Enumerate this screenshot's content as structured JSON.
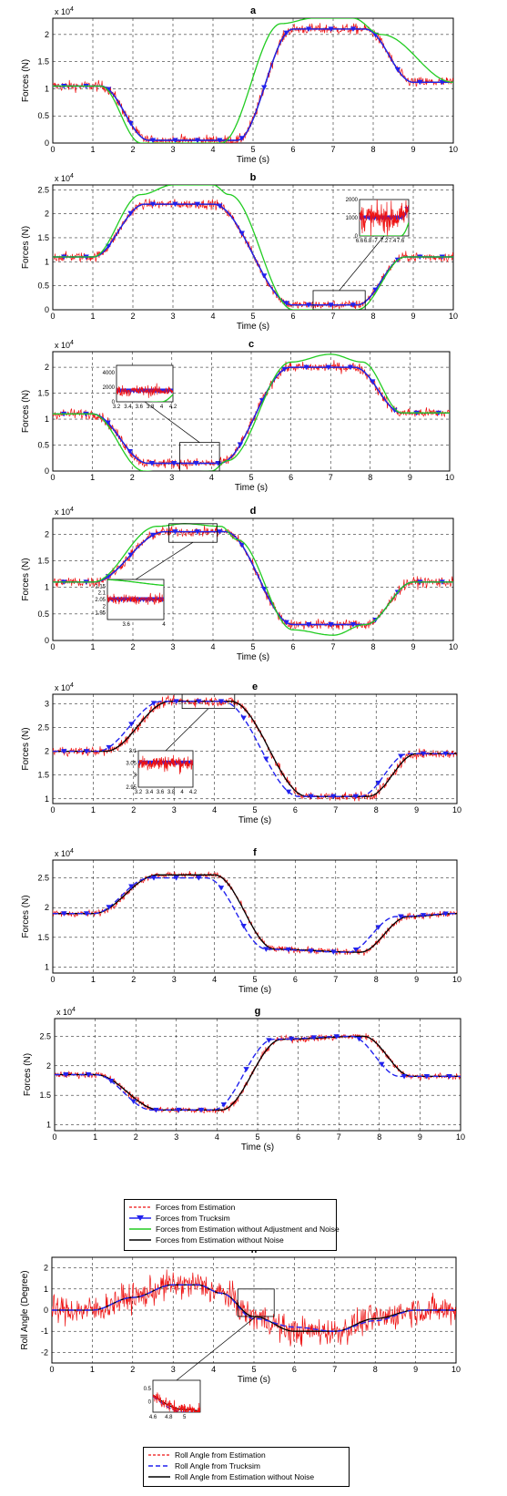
{
  "chart_data": [
    {
      "panel": "a",
      "type": "line",
      "title": "a",
      "xlabel": "Time (s)",
      "ylabel": "Forces (N)",
      "yexponent": "x 10^4",
      "xlim": [
        0,
        10
      ],
      "ylim": [
        0,
        2.3
      ],
      "grid": true,
      "xticks": [
        "0",
        "1",
        "2",
        "3",
        "4",
        "5",
        "6",
        "7",
        "8",
        "9",
        "10"
      ],
      "yticks": [
        "0",
        "0.5",
        "1",
        "1.5",
        "2"
      ],
      "series": [
        {
          "name": "Forces from Estimation without Noise",
          "x": [
            0,
            1.2,
            2.4,
            4.6,
            6.0,
            7.8,
            9.0,
            10
          ],
          "y": [
            1.05,
            1.05,
            0.05,
            0.05,
            2.1,
            2.1,
            1.12,
            1.12
          ]
        },
        {
          "name": "Forces from Trucksim",
          "x": [
            0,
            1.2,
            2.4,
            4.6,
            6.0,
            7.8,
            9.0,
            10
          ],
          "y": [
            1.05,
            1.05,
            0.05,
            0.05,
            2.1,
            2.1,
            1.12,
            1.12
          ]
        },
        {
          "name": "Forces from Estimation without Adjustment and Noise",
          "x": [
            0,
            1.2,
            2.2,
            4.2,
            5.7,
            6.5,
            7.5,
            8.2,
            10
          ],
          "y": [
            1.05,
            1.05,
            0.0,
            0.0,
            2.2,
            2.3,
            2.3,
            2.0,
            1.12
          ]
        },
        {
          "name": "Forces from Estimation",
          "noise": 0.16,
          "x": [
            0,
            1.2,
            2.4,
            4.6,
            6.0,
            7.8,
            9.0,
            10
          ],
          "y": [
            1.05,
            1.05,
            0.05,
            0.05,
            2.1,
            2.1,
            1.12,
            1.12
          ]
        }
      ]
    },
    {
      "panel": "b",
      "type": "line",
      "title": "b",
      "xlabel": "Time (s)",
      "ylabel": "Forces (N)",
      "yexponent": "x 10^4",
      "xlim": [
        0,
        10
      ],
      "ylim": [
        0,
        2.6
      ],
      "grid": true,
      "xticks": [
        "0",
        "1",
        "2",
        "3",
        "4",
        "5",
        "6",
        "7",
        "8",
        "9",
        "10"
      ],
      "yticks": [
        "0",
        "0.5",
        "1",
        "1.5",
        "2",
        "2.5"
      ],
      "series": [
        {
          "name": "Forces from Estimation without Noise",
          "x": [
            0,
            1.0,
            2.3,
            4.0,
            6.0,
            7.6,
            8.8,
            10
          ],
          "y": [
            1.1,
            1.1,
            2.2,
            2.2,
            0.1,
            0.1,
            1.1,
            1.1
          ]
        },
        {
          "name": "Forces from Trucksim",
          "x": [
            0,
            1.0,
            2.3,
            4.0,
            6.0,
            7.6,
            8.8,
            10
          ],
          "y": [
            1.1,
            1.1,
            2.2,
            2.2,
            0.1,
            0.1,
            1.1,
            1.1
          ]
        },
        {
          "name": "Forces from Estimation without Adjustment and Noise",
          "x": [
            0,
            1.0,
            2.2,
            3.0,
            4.0,
            4.4,
            6.0,
            7.6,
            8.8,
            10
          ],
          "y": [
            1.1,
            1.1,
            2.4,
            2.6,
            2.6,
            2.4,
            0.0,
            0.0,
            1.1,
            1.1
          ]
        },
        {
          "name": "Forces from Estimation",
          "noise": 0.16,
          "x": [
            0,
            1.0,
            2.3,
            4.0,
            6.0,
            7.6,
            8.8,
            10
          ],
          "y": [
            1.1,
            1.1,
            2.2,
            2.2,
            0.1,
            0.1,
            1.1,
            1.1
          ]
        }
      ],
      "inset": {
        "xlim": [
          6.6,
          7.8
        ],
        "ylim": [
          0,
          2000
        ],
        "xticks": [
          "6.6",
          "6.8",
          "7",
          "7.2",
          "7.4",
          "7.6"
        ],
        "yticks": [
          "0",
          "1000",
          "2000"
        ],
        "zoom_box": {
          "x": [
            6.5,
            7.8
          ],
          "y": [
            0,
            0.4
          ]
        }
      }
    },
    {
      "panel": "c",
      "type": "line",
      "title": "c",
      "xlabel": "Time (s)",
      "ylabel": "Forces (N)",
      "yexponent": "x 10^4",
      "xlim": [
        0,
        10
      ],
      "ylim": [
        0,
        2.3
      ],
      "grid": true,
      "xticks": [
        "0",
        "1",
        "2",
        "3",
        "4",
        "5",
        "6",
        "7",
        "8",
        "9",
        "10"
      ],
      "yticks": [
        "0",
        "0.5",
        "1",
        "1.5",
        "2"
      ],
      "series": [
        {
          "name": "Forces from Estimation without Noise",
          "x": [
            0,
            1.0,
            2.4,
            4.2,
            6.0,
            7.6,
            8.8,
            10
          ],
          "y": [
            1.1,
            1.1,
            0.15,
            0.15,
            2.0,
            2.0,
            1.12,
            1.12
          ]
        },
        {
          "name": "Forces from Trucksim",
          "x": [
            0,
            1.0,
            2.4,
            4.2,
            6.0,
            7.6,
            8.8,
            10
          ],
          "y": [
            1.1,
            1.1,
            0.15,
            0.15,
            2.0,
            2.0,
            1.12,
            1.12
          ]
        },
        {
          "name": "Forces from Estimation without Adjustment and Noise",
          "x": [
            0,
            1.0,
            2.3,
            3.0,
            4.0,
            4.4,
            6.0,
            7.0,
            7.8,
            8.8,
            10
          ],
          "y": [
            1.1,
            1.1,
            0.0,
            -0.05,
            0.0,
            0.2,
            2.1,
            2.25,
            2.1,
            1.12,
            1.12
          ]
        },
        {
          "name": "Forces from Estimation",
          "noise": 0.16,
          "x": [
            0,
            1.0,
            2.4,
            4.2,
            6.0,
            7.6,
            8.8,
            10
          ],
          "y": [
            1.1,
            1.1,
            0.15,
            0.15,
            2.0,
            2.0,
            1.12,
            1.12
          ]
        }
      ],
      "inset": {
        "xlim": [
          3.2,
          4.2
        ],
        "ylim": [
          0,
          5000
        ],
        "xticks": [
          "3.2",
          "3.4",
          "3.6",
          "3.8",
          "4",
          "4.2"
        ],
        "yticks": [
          "0",
          "2000",
          "4000"
        ],
        "zoom_box": {
          "x": [
            3.2,
            4.2
          ],
          "y": [
            0,
            0.55
          ]
        }
      }
    },
    {
      "panel": "d",
      "type": "line",
      "title": "d",
      "xlabel": "Time (s)",
      "ylabel": "Forces (N)",
      "yexponent": "x 10^4",
      "xlim": [
        0,
        10
      ],
      "ylim": [
        0,
        2.3
      ],
      "grid": true,
      "xticks": [
        "0",
        "1",
        "2",
        "3",
        "4",
        "5",
        "6",
        "7",
        "8",
        "9",
        "10"
      ],
      "yticks": [
        "0",
        "0.5",
        "1",
        "1.5",
        "2"
      ],
      "series": [
        {
          "name": "Forces from Estimation without Noise",
          "x": [
            0,
            1.0,
            2.8,
            4.3,
            6.0,
            7.8,
            9.0,
            10
          ],
          "y": [
            1.1,
            1.1,
            2.05,
            2.05,
            0.3,
            0.3,
            1.1,
            1.1
          ]
        },
        {
          "name": "Forces from Trucksim",
          "x": [
            0,
            1.0,
            2.8,
            4.3,
            6.0,
            7.8,
            9.0,
            10
          ],
          "y": [
            1.1,
            1.1,
            2.05,
            2.05,
            0.3,
            0.3,
            1.1,
            1.1
          ]
        },
        {
          "name": "Forces from Estimation without Adjustment and Noise",
          "x": [
            0,
            1.0,
            2.6,
            3.3,
            4.2,
            4.6,
            6.0,
            7.0,
            7.8,
            9.0,
            10
          ],
          "y": [
            1.1,
            1.1,
            2.15,
            2.2,
            2.15,
            1.9,
            0.2,
            0.1,
            0.3,
            1.1,
            1.1
          ]
        },
        {
          "name": "Forces from Estimation",
          "noise": 0.16,
          "x": [
            0,
            1.0,
            2.8,
            4.3,
            6.0,
            7.8,
            9.0,
            10
          ],
          "y": [
            1.1,
            1.1,
            2.05,
            2.05,
            0.3,
            0.3,
            1.1,
            1.1
          ]
        }
      ],
      "inset": {
        "xlim": [
          3.4,
          4.0
        ],
        "ylim": [
          1.9,
          2.2
        ],
        "xticks": [
          "3.6",
          "4"
        ],
        "yticks": [
          "1.95",
          "2",
          "2.05",
          "2.1",
          "2.15"
        ],
        "zoom_box": {
          "x": [
            2.9,
            4.1
          ],
          "y": [
            1.85,
            2.2
          ]
        }
      }
    },
    {
      "panel": "e",
      "type": "line",
      "title": "e",
      "xlabel": "Time (s)",
      "ylabel": "Forces (N)",
      "yexponent": "x 10^4",
      "xlim": [
        0,
        10
      ],
      "ylim": [
        0.9,
        3.2
      ],
      "grid": true,
      "xticks": [
        "0",
        "1",
        "2",
        "3",
        "4",
        "5",
        "6",
        "7",
        "8",
        "9",
        "10"
      ],
      "yticks": [
        "1",
        "1.5",
        "2",
        "2.5",
        "3"
      ],
      "series": [
        {
          "name": "Forces from Estimation without Noise",
          "x": [
            0,
            1.3,
            2.9,
            4.4,
            6.3,
            7.8,
            9.0,
            10
          ],
          "y": [
            2.0,
            2.0,
            3.05,
            3.05,
            1.05,
            1.05,
            1.95,
            1.95
          ]
        },
        {
          "name": "Forces from Trucksim",
          "x": [
            0,
            1.1,
            2.7,
            4.2,
            6.1,
            7.6,
            8.8,
            10
          ],
          "y": [
            2.0,
            2.0,
            3.05,
            3.05,
            1.05,
            1.05,
            1.95,
            1.95
          ]
        },
        {
          "name": "Forces from Estimation",
          "noise": 0.16,
          "x": [
            0,
            1.3,
            2.9,
            4.4,
            6.3,
            7.8,
            9.0,
            10
          ],
          "y": [
            2.0,
            2.0,
            3.05,
            3.05,
            1.05,
            1.05,
            1.95,
            1.95
          ]
        }
      ],
      "inset": {
        "xlim": [
          3.2,
          4.2
        ],
        "ylim": [
          2.95,
          3.1
        ],
        "xticks": [
          "3.2",
          "3.4",
          "3.6",
          "3.8",
          "4",
          "4.2"
        ],
        "yticks": [
          "2.95",
          "3",
          "3.05",
          "3.1"
        ],
        "zoom_box": {
          "x": [
            3.2,
            4.5
          ],
          "y": [
            2.9,
            3.2
          ]
        }
      }
    },
    {
      "panel": "f",
      "type": "line",
      "title": "f",
      "xlabel": "Time (s)",
      "ylabel": "Forces (N)",
      "yexponent": "x 10^4",
      "xlim": [
        0,
        10
      ],
      "ylim": [
        0.9,
        2.8
      ],
      "grid": true,
      "xticks": [
        "0",
        "1",
        "2",
        "3",
        "4",
        "5",
        "6",
        "7",
        "8",
        "9",
        "10"
      ],
      "yticks": [
        "1",
        "1.5",
        "2",
        "2.5"
      ],
      "series": [
        {
          "name": "Forces from Estimation without Noise",
          "x": [
            0,
            1.0,
            2.6,
            4.0,
            5.5,
            7.6,
            8.8,
            10
          ],
          "y": [
            1.9,
            1.9,
            2.55,
            2.55,
            1.3,
            1.25,
            1.85,
            1.9
          ]
        },
        {
          "name": "Forces from Trucksim",
          "x": [
            0,
            1.0,
            2.4,
            3.8,
            5.3,
            7.3,
            8.5,
            10
          ],
          "y": [
            1.9,
            1.9,
            2.5,
            2.5,
            1.3,
            1.25,
            1.85,
            1.9
          ]
        },
        {
          "name": "Forces from Estimation",
          "noise": 0.09,
          "x": [
            0,
            1.0,
            2.6,
            4.0,
            5.5,
            7.6,
            8.8,
            10
          ],
          "y": [
            1.9,
            1.9,
            2.55,
            2.55,
            1.3,
            1.25,
            1.85,
            1.9
          ]
        }
      ]
    },
    {
      "panel": "g",
      "type": "line",
      "title": "g",
      "xlabel": "Time (s)",
      "ylabel": "Forces (N)",
      "yexponent": "x 10^4",
      "xlim": [
        0,
        10
      ],
      "ylim": [
        0.9,
        2.8
      ],
      "grid": true,
      "xticks": [
        "0",
        "1",
        "2",
        "3",
        "4",
        "5",
        "6",
        "7",
        "8",
        "9",
        "10"
      ],
      "yticks": [
        "1",
        "1.5",
        "2",
        "2.5"
      ],
      "series": [
        {
          "name": "Forces from Estimation without Noise",
          "x": [
            0,
            1.0,
            2.6,
            4.1,
            5.6,
            7.6,
            8.8,
            10
          ],
          "y": [
            1.85,
            1.85,
            1.25,
            1.25,
            2.45,
            2.5,
            1.82,
            1.82
          ]
        },
        {
          "name": "Forces from Trucksim",
          "x": [
            0,
            1.0,
            2.4,
            3.9,
            5.4,
            7.3,
            8.5,
            10
          ],
          "y": [
            1.85,
            1.85,
            1.25,
            1.25,
            2.45,
            2.5,
            1.82,
            1.82
          ]
        },
        {
          "name": "Forces from Estimation",
          "noise": 0.09,
          "x": [
            0,
            1.0,
            2.6,
            4.1,
            5.6,
            7.6,
            8.8,
            10
          ],
          "y": [
            1.85,
            1.85,
            1.25,
            1.25,
            2.45,
            2.5,
            1.82,
            1.82
          ]
        }
      ]
    },
    {
      "panel": "h",
      "type": "line",
      "title": "h",
      "xlabel": "Time (s)",
      "ylabel": "Roll Angle (Degree)",
      "xlim": [
        0,
        10
      ],
      "ylim": [
        -2.5,
        2.5
      ],
      "grid": true,
      "xticks": [
        "0",
        "1",
        "2",
        "3",
        "4",
        "5",
        "6",
        "7",
        "8",
        "9",
        "10"
      ],
      "yticks": [
        "-2",
        "-1",
        "0",
        "1",
        "2"
      ],
      "series": [
        {
          "name": "Roll Angle from Estimation without Noise",
          "x": [
            0,
            1.0,
            2.0,
            3.0,
            3.6,
            4.2,
            5.0,
            6.0,
            7.0,
            8.0,
            9.0,
            10
          ],
          "y": [
            0,
            0,
            0.6,
            1.2,
            1.2,
            0.8,
            -0.3,
            -1.0,
            -1.0,
            -0.4,
            0.0,
            0.0
          ]
        },
        {
          "name": "Roll Angle from Trucksim",
          "x": [
            0,
            1.0,
            2.0,
            3.0,
            3.6,
            4.2,
            5.0,
            6.0,
            7.0,
            8.0,
            9.0,
            10
          ],
          "y": [
            0,
            0,
            0.6,
            1.2,
            1.2,
            0.8,
            -0.4,
            -0.8,
            -1.0,
            -0.5,
            0.0,
            0.0
          ]
        },
        {
          "name": "Roll Angle from Estimation",
          "noise": 0.65,
          "x": [
            0,
            1.0,
            2.0,
            3.0,
            3.6,
            4.2,
            5.0,
            6.0,
            7.0,
            8.0,
            9.0,
            10
          ],
          "y": [
            0,
            0,
            0.6,
            1.2,
            1.2,
            0.8,
            -0.3,
            -1.0,
            -1.0,
            -0.4,
            0.0,
            0.0
          ]
        }
      ],
      "inset": {
        "xlim": [
          4.6,
          5.2
        ],
        "ylim": [
          -0.4,
          0.8
        ],
        "xticks": [
          "4.6",
          "4.8",
          "5"
        ],
        "yticks": [
          "0",
          "0.5"
        ],
        "zoom_box": {
          "x": [
            4.6,
            5.5
          ],
          "y": [
            -0.3,
            1.0
          ]
        }
      }
    }
  ],
  "legend_forces": {
    "entries": [
      "Forces from Estimation",
      "Forces from Trucksim",
      "Forces from Estimation without Adjustment and Noise",
      "Forces from Estimation without Noise"
    ]
  },
  "legend_roll": {
    "entries": [
      "Roll Angle from Estimation",
      "Roll Angle from Trucksim",
      "Roll Angle from Estimation without Noise"
    ]
  },
  "colors": {
    "estimation": "#ee1111",
    "trucksim": "#2222ee",
    "without_adjustment": "#22cc22",
    "without_noise": "#000000",
    "grid": "#000000"
  },
  "yexponent_text": {
    "base": "x 10",
    "power": "4"
  }
}
